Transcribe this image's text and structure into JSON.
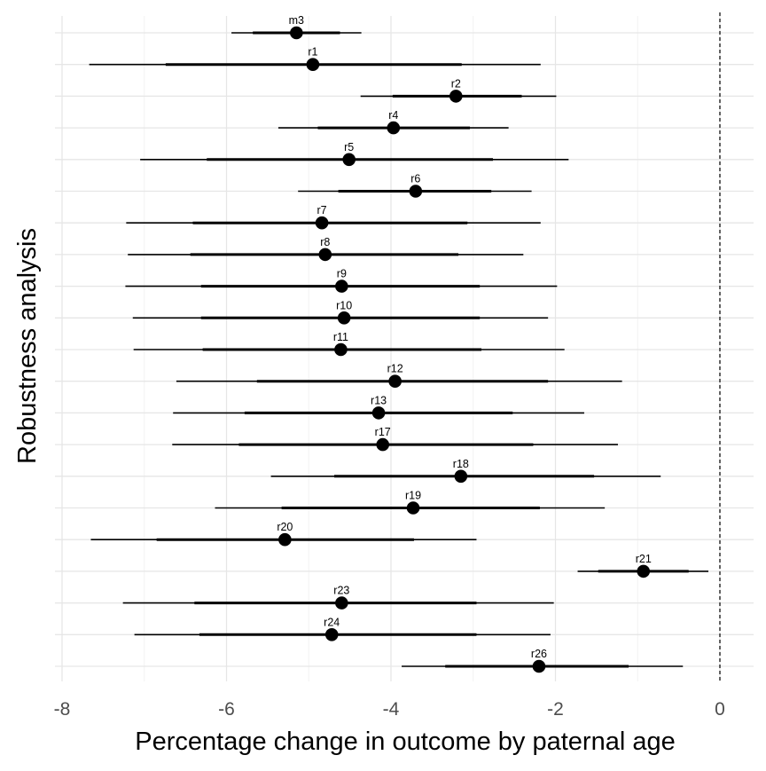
{
  "chart_data": {
    "type": "forest",
    "xlabel": "Percentage change in outcome by paternal age",
    "ylabel": "Robustness analysis",
    "xlim": [
      -8,
      0
    ],
    "xticks": [
      -8,
      -6,
      -4,
      -2,
      0
    ],
    "reference_line_x": 0,
    "reference_line_style": "dashed",
    "grid": true,
    "series": [
      {
        "label": "m3",
        "estimate": -5.15,
        "ci_inner": [
          -5.68,
          -4.62
        ],
        "ci_outer": [
          -5.94,
          -4.36
        ]
      },
      {
        "label": "r1",
        "estimate": -4.95,
        "ci_inner": [
          -6.74,
          -3.14
        ],
        "ci_outer": [
          -7.67,
          -2.18
        ]
      },
      {
        "label": "r2",
        "estimate": -3.21,
        "ci_inner": [
          -3.98,
          -2.41
        ],
        "ci_outer": [
          -4.37,
          -1.99
        ]
      },
      {
        "label": "r4",
        "estimate": -3.97,
        "ci_inner": [
          -4.89,
          -3.04
        ],
        "ci_outer": [
          -5.37,
          -2.57
        ]
      },
      {
        "label": "r5",
        "estimate": -4.51,
        "ci_inner": [
          -6.24,
          -2.76
        ],
        "ci_outer": [
          -7.05,
          -1.84
        ]
      },
      {
        "label": "r6",
        "estimate": -3.7,
        "ci_inner": [
          -4.64,
          -2.78
        ],
        "ci_outer": [
          -5.13,
          -2.29
        ]
      },
      {
        "label": "r7",
        "estimate": -4.84,
        "ci_inner": [
          -6.41,
          -3.07
        ],
        "ci_outer": [
          -7.22,
          -2.18
        ]
      },
      {
        "label": "r8",
        "estimate": -4.8,
        "ci_inner": [
          -6.44,
          -3.18
        ],
        "ci_outer": [
          -7.2,
          -2.39
        ]
      },
      {
        "label": "r9",
        "estimate": -4.6,
        "ci_inner": [
          -6.31,
          -2.92
        ],
        "ci_outer": [
          -7.23,
          -1.98
        ]
      },
      {
        "label": "r10",
        "estimate": -4.57,
        "ci_inner": [
          -6.31,
          -2.92
        ],
        "ci_outer": [
          -7.14,
          -2.09
        ]
      },
      {
        "label": "r11",
        "estimate": -4.61,
        "ci_inner": [
          -6.29,
          -2.9
        ],
        "ci_outer": [
          -7.13,
          -1.89
        ]
      },
      {
        "label": "r12",
        "estimate": -3.95,
        "ci_inner": [
          -5.63,
          -2.09
        ],
        "ci_outer": [
          -6.61,
          -1.19
        ]
      },
      {
        "label": "r13",
        "estimate": -4.15,
        "ci_inner": [
          -5.78,
          -2.52
        ],
        "ci_outer": [
          -6.65,
          -1.65
        ]
      },
      {
        "label": "r17",
        "estimate": -4.1,
        "ci_inner": [
          -5.85,
          -2.27
        ],
        "ci_outer": [
          -6.66,
          -1.24
        ]
      },
      {
        "label": "r18",
        "estimate": -3.15,
        "ci_inner": [
          -4.69,
          -1.53
        ],
        "ci_outer": [
          -5.46,
          -0.72
        ]
      },
      {
        "label": "r19",
        "estimate": -3.73,
        "ci_inner": [
          -5.33,
          -2.19
        ],
        "ci_outer": [
          -6.14,
          -1.4
        ]
      },
      {
        "label": "r20",
        "estimate": -5.29,
        "ci_inner": [
          -6.85,
          -3.72
        ],
        "ci_outer": [
          -7.65,
          -2.96
        ]
      },
      {
        "label": "r21",
        "estimate": -0.93,
        "ci_inner": [
          -1.48,
          -0.38
        ],
        "ci_outer": [
          -1.73,
          -0.14
        ]
      },
      {
        "label": "r23",
        "estimate": -4.6,
        "ci_inner": [
          -6.39,
          -2.96
        ],
        "ci_outer": [
          -7.26,
          -2.02
        ]
      },
      {
        "label": "r24",
        "estimate": -4.72,
        "ci_inner": [
          -6.33,
          -2.96
        ],
        "ci_outer": [
          -7.12,
          -2.06
        ]
      },
      {
        "label": "r26",
        "estimate": -2.2,
        "ci_inner": [
          -3.34,
          -1.11
        ],
        "ci_outer": [
          -3.87,
          -0.45
        ]
      }
    ]
  }
}
